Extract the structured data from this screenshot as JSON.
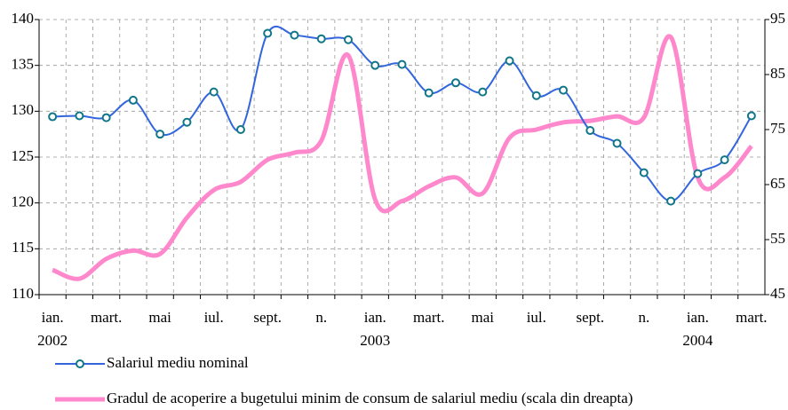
{
  "chart_data": {
    "type": "line",
    "categories": [
      "ian.",
      null,
      "mart.",
      null,
      "mai",
      null,
      "iul.",
      null,
      "sept.",
      null,
      "n.",
      null,
      "ian.",
      null,
      "mart.",
      null,
      "mai",
      null,
      "iul.",
      null,
      "sept.",
      null,
      "n.",
      null,
      "ian.",
      null,
      "mart."
    ],
    "years": [
      "2002",
      "2003",
      "2004"
    ],
    "series": [
      {
        "name": "Salariul mediu nominal",
        "color": "#3366dd",
        "marker": true,
        "values": [
          129.4,
          129.5,
          129.3,
          131.2,
          127.5,
          128.8,
          132.1,
          128.0,
          138.5,
          138.3,
          137.9,
          137.8,
          135.0,
          135.1,
          132.0,
          133.1,
          132.1,
          135.5,
          131.7,
          132.3,
          127.9,
          126.5,
          123.3,
          120.2,
          123.2,
          124.7,
          129.5
        ]
      },
      {
        "name": "Gradul de acoperire a bugetului minim de consum de salariul mediu (scala din dreapta)",
        "color": "#ff88cc",
        "axis": "y2",
        "marker": false,
        "values": [
          49.5,
          47.9,
          51.5,
          53.0,
          52.4,
          59.0,
          64.0,
          65.5,
          69.5,
          70.8,
          73.0,
          88.5,
          62.3,
          62.0,
          64.7,
          66.3,
          63.4,
          73.5,
          75.0,
          76.3,
          76.6,
          77.4,
          77.2,
          91.8,
          66.3,
          66.3,
          72.0
        ]
      }
    ],
    "ylim": [
      110,
      140
    ],
    "yticks": [
      110,
      115,
      120,
      125,
      130,
      135,
      140
    ],
    "y2lim": [
      45,
      95
    ],
    "y2ticks": [
      45,
      55,
      65,
      75,
      85,
      95
    ],
    "grid": true
  }
}
